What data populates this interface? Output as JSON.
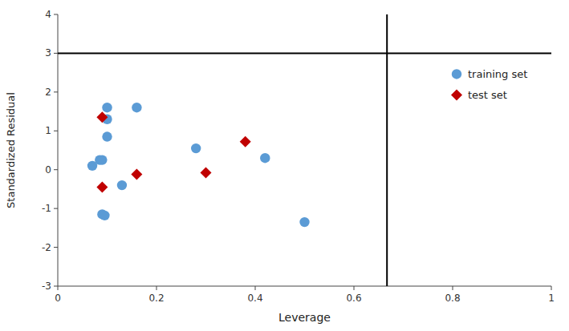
{
  "chart_data": {
    "type": "scatter",
    "xlabel": "Leverage",
    "ylabel": "Standardized Residual",
    "series": [
      {
        "name": "training set",
        "color": "#5B9BD5",
        "marker": "circle",
        "x": [
          0.07,
          0.085,
          0.09,
          0.09,
          0.095,
          0.1,
          0.1,
          0.1,
          0.13,
          0.16,
          0.28,
          0.42,
          0.5
        ],
        "values": [
          0.1,
          0.25,
          0.25,
          -1.15,
          -1.18,
          1.3,
          1.6,
          0.85,
          -0.4,
          1.6,
          0.55,
          0.3,
          -1.35
        ]
      },
      {
        "name": "test set",
        "color": "#C00000",
        "marker": "diamond",
        "x": [
          0.09,
          0.09,
          0.16,
          0.3,
          0.38
        ],
        "values": [
          1.35,
          -0.45,
          -0.12,
          -0.08,
          0.72
        ]
      }
    ],
    "hline": 3.0,
    "vline": 0.667,
    "xlim": [
      0,
      1
    ],
    "ylim": [
      -3,
      4
    ],
    "xticks": [
      0,
      0.2,
      0.4,
      0.6,
      0.8,
      1
    ],
    "yticks": [
      -3,
      -2,
      -1,
      0,
      1,
      2,
      3,
      4
    ],
    "grid": false,
    "legend": "upper-right"
  }
}
